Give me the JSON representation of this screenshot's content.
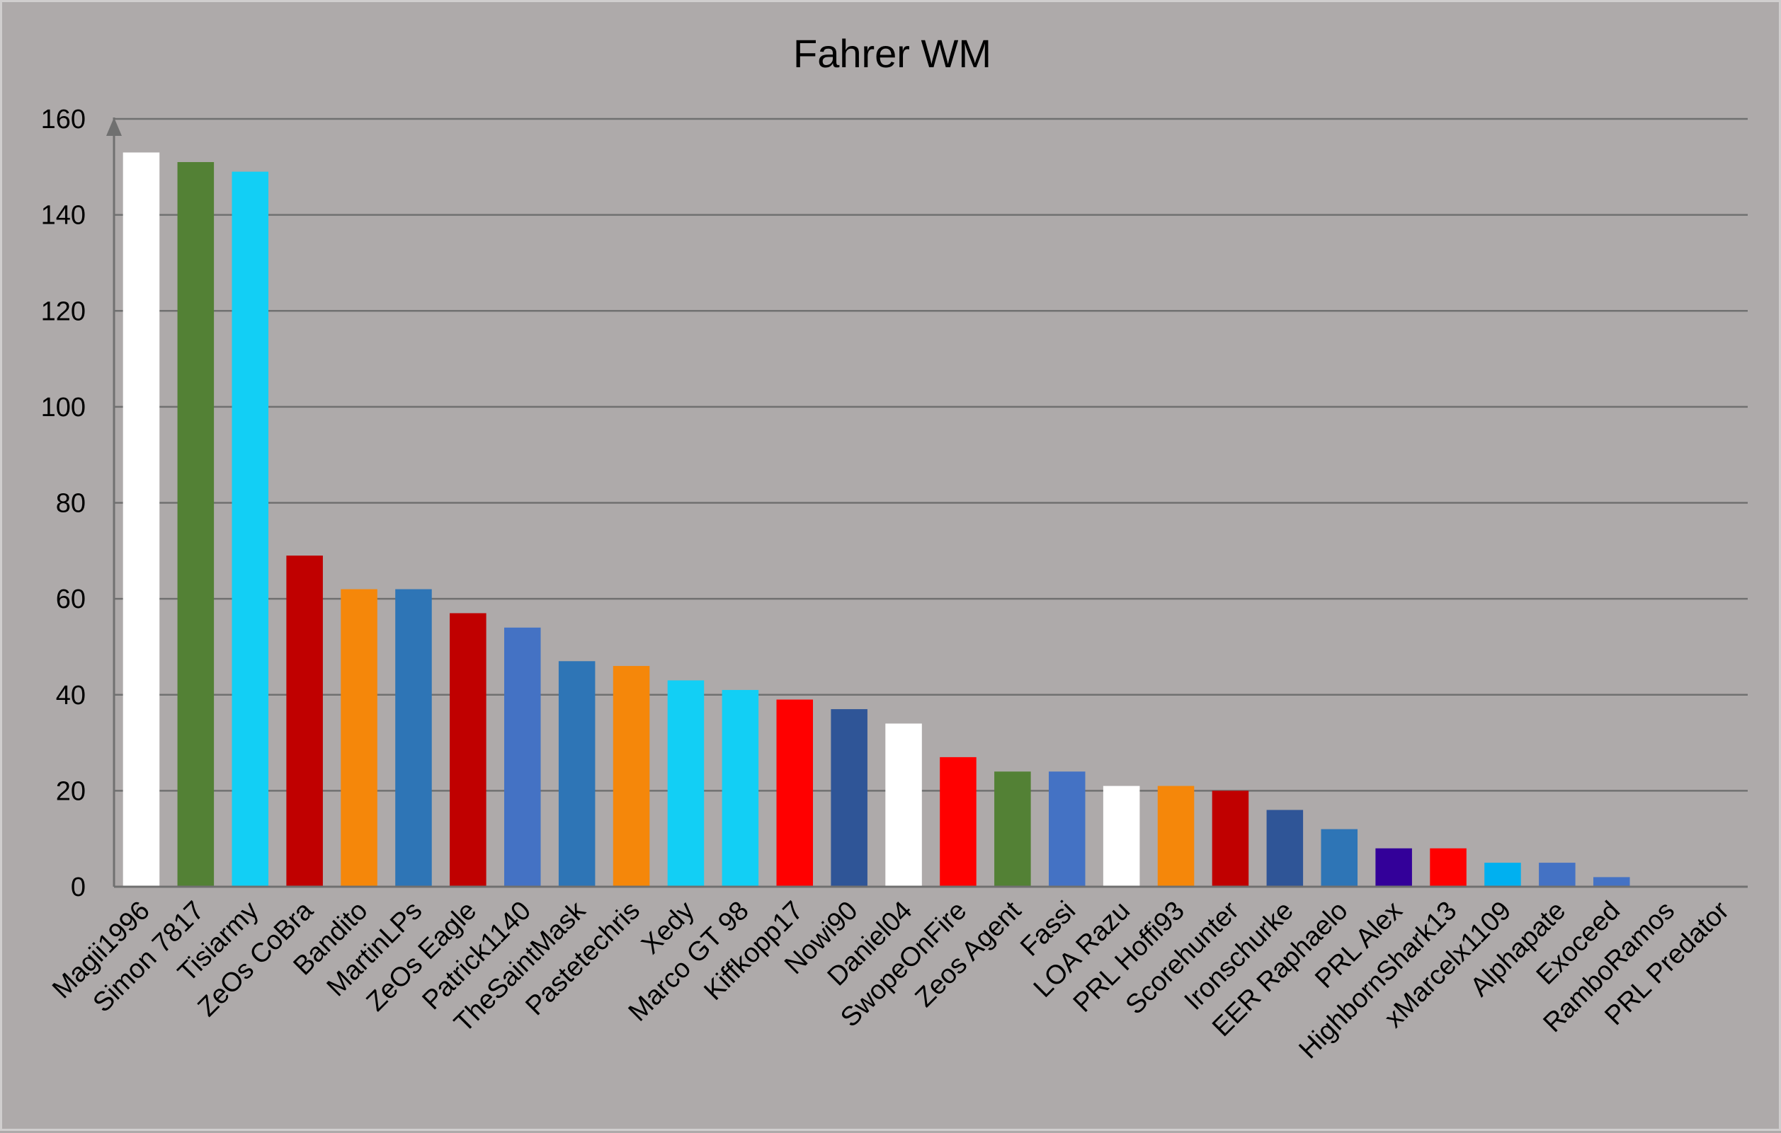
{
  "chart_data": {
    "type": "bar",
    "title": "Fahrer WM",
    "xlabel": "",
    "ylabel": "",
    "ylim": [
      0,
      160
    ],
    "yticks": [
      0,
      20,
      40,
      60,
      80,
      100,
      120,
      140,
      160
    ],
    "grid": true,
    "legend": "none",
    "categories": [
      "Magii1996",
      "Simon 7817",
      "Tisiarmy",
      "ZeOs CoBra",
      "Bandito",
      "MartinLPs",
      "ZeOs Eagle",
      "Patrick1140",
      "TheSaintMask",
      "Pastetechris",
      "Xedy",
      "Marco GT 98",
      "Kiffkopp17",
      "Nowi90",
      "Daniel04",
      "SwopeOnFire",
      "Zeos Agent",
      "Fassi",
      "LOA Razu",
      "PRL Hoffi93",
      "Scorehunter",
      "Ironschurke",
      "EER Raphaelo",
      "PRL Alex",
      "HighbornShark13",
      "xMarcelx1109",
      "Alphapate",
      "Exoceed",
      "RamboRamos",
      "PRL Predator"
    ],
    "values": [
      153,
      151,
      149,
      69,
      62,
      62,
      57,
      54,
      47,
      46,
      43,
      41,
      39,
      37,
      34,
      27,
      24,
      24,
      21,
      21,
      20,
      16,
      12,
      8,
      8,
      5,
      5,
      2,
      0,
      0
    ],
    "colors": [
      "#ffffff",
      "#538135",
      "#12cff5",
      "#c00000",
      "#f5870a",
      "#2e75b6",
      "#c00000",
      "#4472c4",
      "#2e75b6",
      "#f5870a",
      "#12cff5",
      "#12cff5",
      "#ff0000",
      "#2f5597",
      "#ffffff",
      "#ff0000",
      "#538135",
      "#4472c4",
      "#ffffff",
      "#f5870a",
      "#c00000",
      "#2f5597",
      "#2e75b6",
      "#330099",
      "#ff0000",
      "#00b0f0",
      "#4472c4",
      "#4472c4",
      "#4472c4",
      "#4472c4"
    ]
  }
}
